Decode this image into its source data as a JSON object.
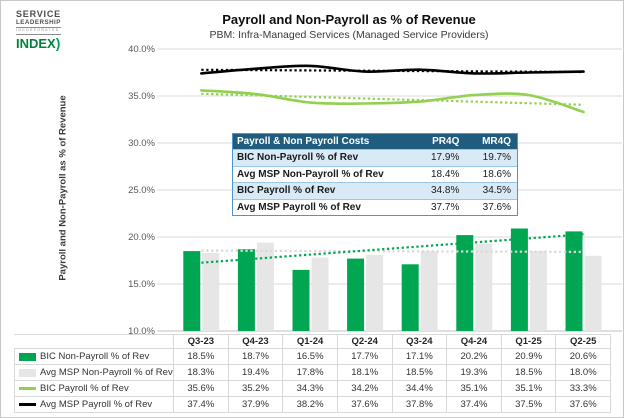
{
  "logo": {
    "line1": "SERVICE",
    "line2": "LEADERSHIP",
    "line3": "INCORPORATED",
    "line4": "INDEX",
    "swoosh_glyph": ")",
    "accent_color": "#00A651"
  },
  "header": {
    "title": "Payroll and Non-Payroll as % of Revenue",
    "subtitle": "PBM: Infra-Managed Services (Managed Service Providers)"
  },
  "y_axis": {
    "title": "Payroll and Non-Payroll as % of Revenue",
    "tick_labels": [
      "40.0%",
      "35.0%",
      "30.0%",
      "25.0%",
      "20.0%",
      "15.0%",
      "10.0%"
    ]
  },
  "overlay_table": {
    "header": {
      "label": "Payroll & Non Payroll Costs",
      "col1": "PR4Q",
      "col2": "MR4Q"
    },
    "rows": [
      {
        "label": "BIC Non-Payroll % of Rev",
        "pr4q": "17.9%",
        "mr4q": "19.7%"
      },
      {
        "label": "Avg MSP Non-Payroll % of Rev",
        "pr4q": "18.4%",
        "mr4q": "18.6%"
      },
      {
        "label": "BIC Payroll % of Rev",
        "pr4q": "34.8%",
        "mr4q": "34.5%"
      },
      {
        "label": "Avg MSP Payroll % of Rev",
        "pr4q": "37.7%",
        "mr4q": "37.6%"
      }
    ]
  },
  "chart_data": {
    "type": "combo bar+line",
    "title": "Payroll and Non-Payroll as % of Revenue",
    "subtitle": "PBM: Infra-Managed Services (Managed Service Providers)",
    "ylabel": "Payroll and Non-Payroll as % of Revenue",
    "ylim": [
      10,
      40
    ],
    "ytick_step": 5,
    "grid": true,
    "legend_position": "bottom data table",
    "categories": [
      "Q3-23",
      "Q4-23",
      "Q1-24",
      "Q2-24",
      "Q3-24",
      "Q4-24",
      "Q1-25",
      "Q2-25"
    ],
    "series": [
      {
        "name": "BIC Non-Payroll % of Rev",
        "type": "bar",
        "color": "#00A651",
        "trend_color": "#00A651",
        "values": [
          18.5,
          18.7,
          16.5,
          17.7,
          17.1,
          20.2,
          20.9,
          20.6
        ]
      },
      {
        "name": "Avg MSP Non-Payroll % of Rev",
        "type": "bar",
        "color": "#E6E6E6",
        "trend_color": "#D9D9D9",
        "values": [
          18.3,
          19.4,
          17.8,
          18.1,
          18.5,
          19.3,
          18.5,
          18.0
        ]
      },
      {
        "name": "BIC Payroll % of Rev",
        "type": "line",
        "color": "#92D050",
        "trend_color": "#92D050",
        "values": [
          35.6,
          35.2,
          34.3,
          34.2,
          34.4,
          35.1,
          35.1,
          33.3
        ]
      },
      {
        "name": "Avg MSP Payroll % of Rev",
        "type": "line",
        "color": "#000000",
        "trend_color": "#000000",
        "values": [
          37.4,
          37.9,
          38.2,
          37.6,
          37.8,
          37.4,
          37.5,
          37.6
        ]
      }
    ],
    "trendlines": "linear dotted trendline per series"
  },
  "colors": {
    "grid": "#D9D9D9",
    "axis": "#BFBFBF",
    "tick_text": "#595959",
    "overlay_header_bg": "#1F5C7D",
    "overlay_row_shade": "#D9EAF7",
    "table_border": "#D9D9D9"
  }
}
